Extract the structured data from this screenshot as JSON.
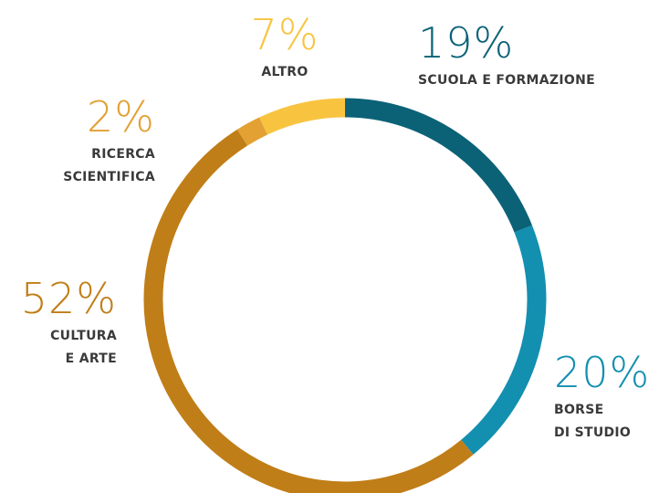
{
  "chart_data": {
    "type": "donut",
    "categories": [
      "SCUOLA E FORMAZIONE",
      "BORSE\nDI STUDIO",
      "CULTURA\nE ARTE",
      "RICERCA\nSCIENTIFICA",
      "ALTRO"
    ],
    "values": [
      19,
      20,
      52,
      2,
      7
    ],
    "value_labels": [
      "19%",
      "20%",
      "52%",
      "2%",
      "7%"
    ],
    "colors": [
      "#0b6277",
      "#138fb0",
      "#c07e18",
      "#e3a033",
      "#f8c440"
    ]
  }
}
